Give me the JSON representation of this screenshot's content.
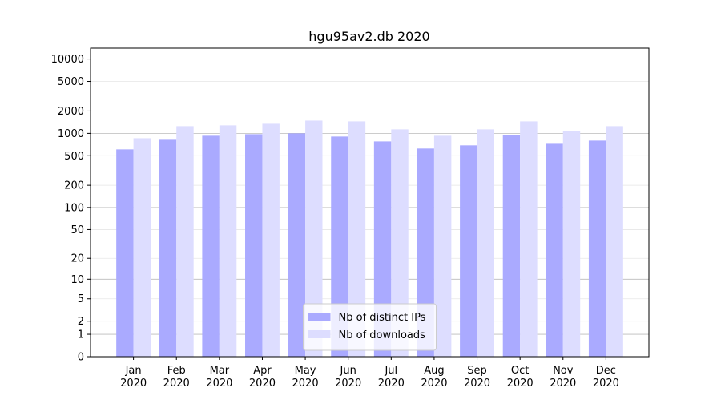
{
  "chart_data": {
    "type": "bar",
    "title": "hgu95av2.db 2020",
    "categories": [
      "Jan\n2020",
      "Feb\n2020",
      "Mar\n2020",
      "Apr\n2020",
      "May\n2020",
      "Jun\n2020",
      "Jul\n2020",
      "Aug\n2020",
      "Sep\n2020",
      "Oct\n2020",
      "Nov\n2020",
      "Dec\n2020"
    ],
    "series": [
      {
        "name": "Nb of distinct IPs",
        "color": "#aaaaff",
        "values": [
          609,
          820,
          929,
          975,
          1000,
          906,
          780,
          625,
          690,
          951,
          724,
          800
        ]
      },
      {
        "name": "Nb of downloads",
        "color": "#ddddff",
        "values": [
          861,
          1250,
          1282,
          1346,
          1485,
          1450,
          1132,
          928,
          1132,
          1450,
          1076,
          1250
        ]
      }
    ],
    "yscale": "symlog",
    "ylim": [
      0,
      14000
    ],
    "yticks": [
      0,
      1,
      2,
      5,
      10,
      20,
      50,
      100,
      200,
      500,
      1000,
      2000,
      5000,
      10000
    ],
    "grid": true,
    "legend": "lower center"
  }
}
